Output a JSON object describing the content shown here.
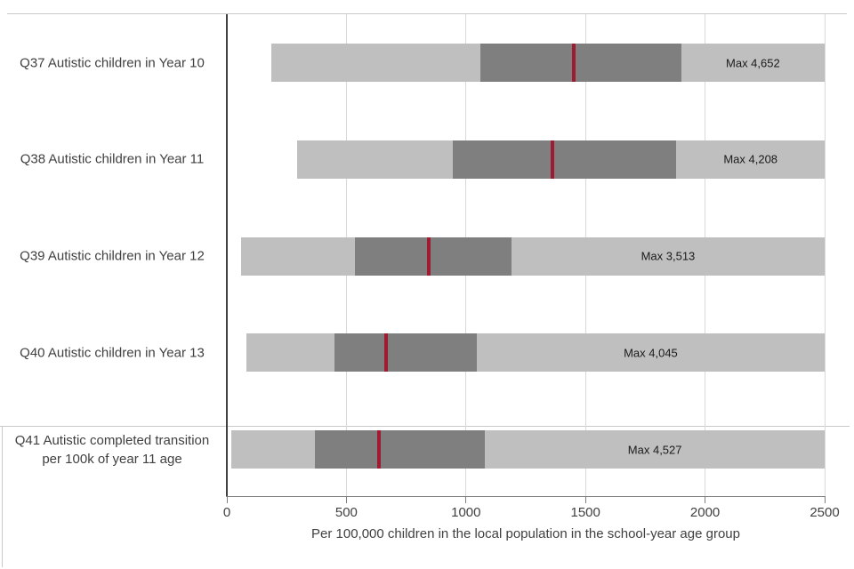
{
  "chart_data": {
    "type": "bar",
    "orientation": "horizontal",
    "subtype": "range_bar_with_interquartile_box_and_median_line",
    "title": "",
    "xlabel": "Per 100,000 children in the local population in the school-year age group",
    "ylabel": "",
    "xlim": [
      0,
      2500
    ],
    "x_ticks": [
      0,
      500,
      1000,
      1500,
      2000,
      2500
    ],
    "grid": "vertical gridlines at each x tick",
    "legend": "none",
    "rows": [
      {
        "id": "Q37",
        "label_lines": [
          "Q37 Autistic children in Year 10"
        ],
        "range_start": 185,
        "box_start": 1060,
        "median": 1450,
        "box_end": 1900,
        "range_end_clipped": 2500,
        "max_text": "Max 4,652",
        "max_value": 4652
      },
      {
        "id": "Q38",
        "label_lines": [
          "Q38 Autistic children in Year 11"
        ],
        "range_start": 295,
        "box_start": 945,
        "median": 1360,
        "box_end": 1880,
        "range_end_clipped": 2500,
        "max_text": "Max 4,208",
        "max_value": 4208
      },
      {
        "id": "Q39",
        "label_lines": [
          "Q39 Autistic children in Year 12"
        ],
        "range_start": 60,
        "box_start": 535,
        "median": 845,
        "box_end": 1190,
        "range_end_clipped": 2500,
        "max_text": "Max 3,513",
        "max_value": 3513
      },
      {
        "id": "Q40",
        "label_lines": [
          "Q40 Autistic children in Year 13"
        ],
        "range_start": 80,
        "box_start": 450,
        "median": 665,
        "box_end": 1045,
        "range_end_clipped": 2500,
        "max_text": "Max 4,045",
        "max_value": 4045
      },
      {
        "id": "Q41",
        "label_lines": [
          "Q41 Autistic completed transition",
          "per 100k of year 11 age"
        ],
        "range_start": 20,
        "box_start": 370,
        "median": 635,
        "box_end": 1080,
        "range_end_clipped": 2500,
        "max_text": "Max 4,527",
        "max_value": 4527
      }
    ],
    "colors": {
      "range_bar": "#bfbfbf",
      "iqr_bar": "#7f7f7f",
      "median_line": "#9e1b32",
      "gridline": "#d9d9d9",
      "axis_line": "#404040",
      "x_axis_line": "#808080",
      "text": "#404040",
      "max_text": "#1a1a1a"
    }
  }
}
